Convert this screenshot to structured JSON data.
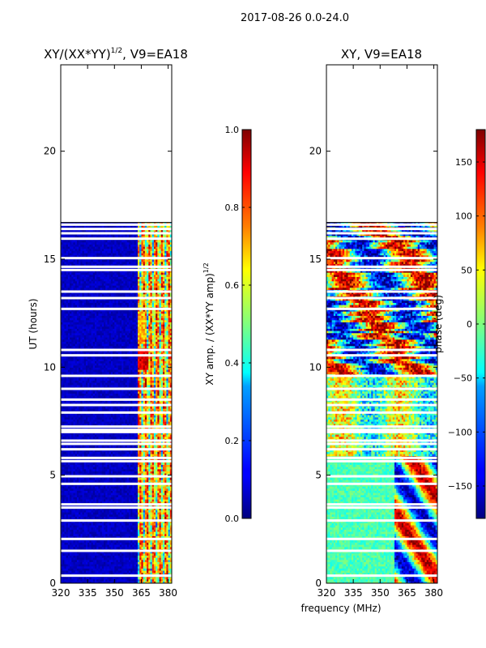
{
  "suptitle": "2017-08-26 0.0-24.0",
  "chart_data": [
    {
      "type": "heatmap",
      "title": "XY/(XX*YY)^1/2, V9=EA18",
      "title_main": "XY/(XX*YY)",
      "title_sup": "1/2",
      "title_tail": ", V9=EA18",
      "ylabel": "UT (hours)",
      "xlabel": "",
      "xlim": [
        320,
        382
      ],
      "ylim": [
        0,
        24
      ],
      "xticks": [
        320,
        335,
        350,
        365,
        380
      ],
      "yticks": [
        0,
        5,
        10,
        15,
        20
      ],
      "data_top_hours": 16.7,
      "signal_band_mhz": [
        363,
        382
      ],
      "gap_rows_hours": [
        0.35,
        1.5,
        2.05,
        2.9,
        3.5,
        3.65,
        4.6,
        4.95,
        5.65,
        5.8,
        6.2,
        6.45,
        6.6,
        7.0,
        7.1,
        7.25,
        7.9,
        8.25,
        8.5,
        9.0,
        9.6,
        10.55,
        10.8,
        12.7,
        13.2,
        13.5,
        14.5,
        14.65,
        15.05,
        15.95,
        16.2,
        16.4,
        16.6
      ],
      "colorbar": {
        "label": "XY amp. / (XX*YY amp)^1/2",
        "label_main": "XY amp. / (XX*YY amp)",
        "label_sup": "1/2",
        "range": [
          0.0,
          1.0
        ],
        "ticks": [
          "0.0",
          "0.2",
          "0.4",
          "0.6",
          "0.8",
          "1.0"
        ]
      }
    },
    {
      "type": "heatmap",
      "title": "XY, V9=EA18",
      "ylabel": "",
      "xlabel": "frequency (MHz)",
      "xlim": [
        320,
        382
      ],
      "ylim": [
        0,
        24
      ],
      "xticks": [
        320,
        335,
        350,
        365,
        380
      ],
      "yticks": [
        0,
        5,
        10,
        15,
        20
      ],
      "data_top_hours": 16.7,
      "colorbar": {
        "label": "phase (deg)",
        "range": [
          -180,
          180
        ],
        "ticks": [
          "150",
          "100",
          "50",
          "0",
          "−50",
          "−100",
          "−150"
        ]
      }
    }
  ],
  "colors": {
    "jet": [
      "#00007f",
      "#0000ff",
      "#007fff",
      "#00ffff",
      "#7fff7f",
      "#ffff00",
      "#ff7f00",
      "#ff0000",
      "#7f0000"
    ]
  }
}
